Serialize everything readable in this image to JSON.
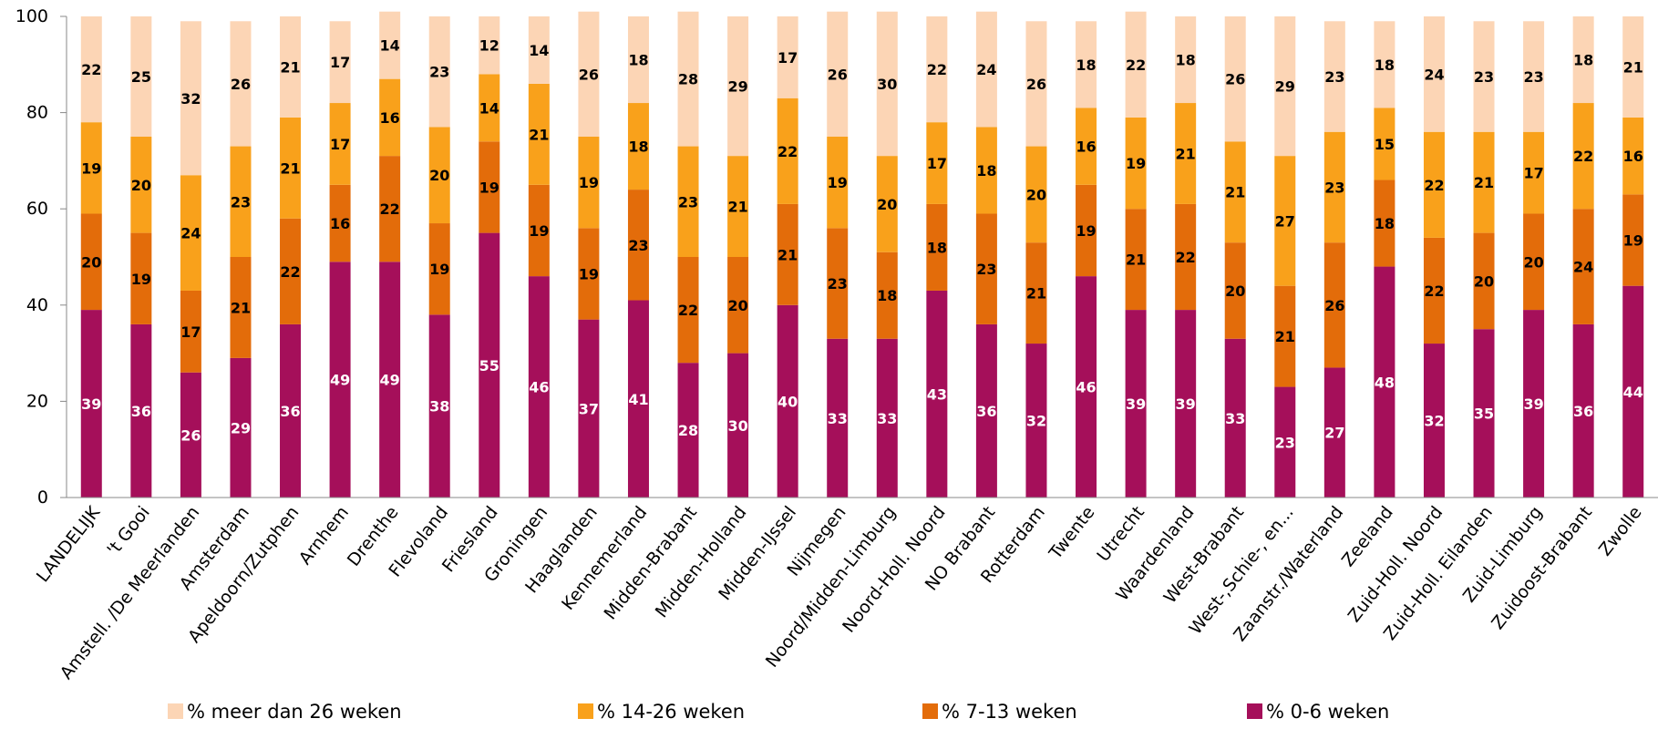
{
  "chart_data": {
    "type": "bar",
    "stacked": true,
    "title": "",
    "xlabel": "",
    "ylabel": "",
    "ylim": [
      0,
      100
    ],
    "yticks": [
      "0",
      "20",
      "40",
      "60",
      "80",
      "100"
    ],
    "grid": false,
    "legend_position": "bottom",
    "categories": [
      "LANDELIJK",
      "'t Gooi",
      "Amstell. /De Meerlanden",
      "Amsterdam",
      "Apeldoorn/Zutphen",
      "Arnhem",
      "Drenthe",
      "Flevoland",
      "Friesland",
      "Groningen",
      "Haaglanden",
      "Kennemerland",
      "Midden-Brabant",
      "Midden-Holland",
      "Midden-IJssel",
      "Nijmegen",
      "Noord/Midden-Limburg",
      "Noord-Holl. Noord",
      "NO Brabant",
      "Rotterdam",
      "Twente",
      "Utrecht",
      "Waardenland",
      "West-Brabant",
      "West-,Schie-, en...",
      "Zaanstr./Waterland",
      "Zeeland",
      "Zuid-Holl. Noord",
      "Zuid-Holl. Eilanden",
      "Zuid-Limburg",
      "Zuidoost-Brabant",
      "Zwolle"
    ],
    "series": [
      {
        "name": "% 0-6 weken",
        "color": "#a50f5a",
        "label_color": "#ffffff",
        "values": [
          39,
          36,
          26,
          29,
          36,
          49,
          49,
          38,
          55,
          46,
          37,
          41,
          28,
          30,
          40,
          33,
          33,
          43,
          36,
          32,
          46,
          39,
          39,
          33,
          23,
          27,
          48,
          32,
          35,
          39,
          36,
          44
        ]
      },
      {
        "name": "% 7-13 weken",
        "color": "#e36c0a",
        "label_color": "#000000",
        "values": [
          20,
          19,
          17,
          21,
          22,
          16,
          22,
          19,
          19,
          19,
          19,
          23,
          22,
          20,
          21,
          23,
          18,
          18,
          23,
          21,
          19,
          21,
          22,
          20,
          21,
          26,
          18,
          22,
          20,
          20,
          24,
          19
        ]
      },
      {
        "name": "% 14-26 weken",
        "color": "#f9a11b",
        "label_color": "#000000",
        "values": [
          19,
          20,
          24,
          23,
          21,
          17,
          16,
          20,
          14,
          21,
          19,
          18,
          23,
          21,
          22,
          19,
          20,
          17,
          18,
          20,
          16,
          19,
          21,
          21,
          27,
          23,
          15,
          22,
          21,
          17,
          22,
          16
        ]
      },
      {
        "name": "% meer dan 26 weken",
        "color": "#fcd5b5",
        "label_color": "#000000",
        "values": [
          22,
          25,
          32,
          26,
          21,
          17,
          14,
          23,
          12,
          14,
          26,
          18,
          28,
          29,
          17,
          26,
          30,
          22,
          24,
          26,
          18,
          22,
          18,
          26,
          29,
          23,
          18,
          24,
          23,
          23,
          18,
          21
        ]
      }
    ],
    "legend_order": [
      3,
      2,
      1,
      0
    ]
  }
}
